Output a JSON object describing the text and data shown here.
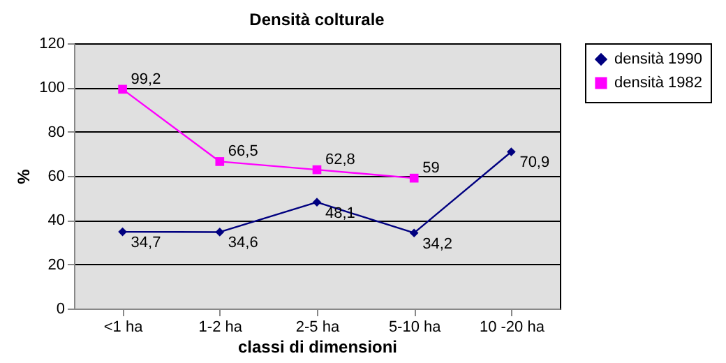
{
  "chart_data": {
    "type": "line",
    "title": "Densità colturale",
    "xlabel": "classi di dimensioni",
    "ylabel": "%",
    "categories": [
      "<1 ha",
      "1-2 ha",
      "2-5 ha",
      "5-10 ha",
      "10 -20 ha"
    ],
    "series": [
      {
        "name": "densità 1990",
        "color": "#000080",
        "marker": "diamond",
        "values": [
          34.7,
          34.6,
          48.1,
          34.2,
          70.9
        ],
        "value_labels": [
          "34,7",
          "34,6",
          "48,1",
          "34,2",
          "70,9"
        ]
      },
      {
        "name": "densità 1982",
        "color": "#ff00ff",
        "marker": "square",
        "values": [
          99.2,
          66.5,
          62.8,
          59,
          null
        ],
        "value_labels": [
          "99,2",
          "66,5",
          "62,8",
          "59",
          null
        ]
      }
    ],
    "ylim": [
      0,
      120
    ],
    "yticks": [
      0,
      20,
      40,
      60,
      80,
      100,
      120
    ],
    "grid": "y",
    "legend": "right",
    "line_style": "solid"
  }
}
